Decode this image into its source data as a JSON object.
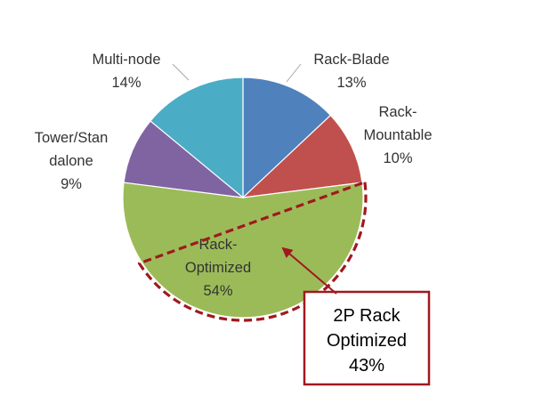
{
  "chart_data": {
    "type": "pie",
    "slices": [
      {
        "label_lines": [
          "Rack-Blade"
        ],
        "value_text": "13%",
        "value": 13,
        "color": "#4F81BD"
      },
      {
        "label_lines": [
          "Rack-",
          "Mountable"
        ],
        "value_text": "10%",
        "value": 10,
        "color": "#C0504D"
      },
      {
        "label_lines": [
          "Rack-",
          "Optimized"
        ],
        "value_text": "54%",
        "value": 54,
        "color": "#9BBB59"
      },
      {
        "label_lines": [
          "Tower/Stan",
          "dalone"
        ],
        "value_text": "9%",
        "value": 9,
        "color": "#8064A2"
      },
      {
        "label_lines": [
          "Multi-node"
        ],
        "value_text": "14%",
        "value": 14,
        "color": "#4BACC6"
      }
    ],
    "highlight": {
      "sub_slice": "2P Rack Optimized",
      "value": 43,
      "outline_color": "#A0191E"
    },
    "callout": {
      "lines": [
        "2P Rack",
        "Optimized",
        "43%"
      ],
      "border_color": "#A0191E",
      "arrow_color": "#A0191E"
    },
    "leader_line_color": "#A6A6A6"
  }
}
